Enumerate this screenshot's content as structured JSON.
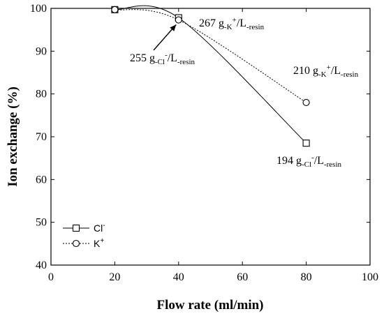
{
  "chart_data": {
    "type": "line",
    "title": "",
    "xlabel": "Flow rate (ml/min)",
    "ylabel": "Ion exchange (%)",
    "xlim": [
      0,
      100
    ],
    "ylim": [
      40,
      100
    ],
    "xticks": [
      0,
      20,
      40,
      60,
      80,
      100
    ],
    "yticks": [
      40,
      50,
      60,
      70,
      80,
      90,
      100
    ],
    "grid": false,
    "legend_position": "bottom-left",
    "series": [
      {
        "name": "Cl-",
        "legend_label": "Cl",
        "legend_sup": "-",
        "marker": "square",
        "line_style": "solid",
        "x": [
          20,
          40,
          80
        ],
        "y": [
          99.7,
          97.8,
          68.5
        ]
      },
      {
        "name": "K+",
        "legend_label": "K",
        "legend_sup": "+",
        "marker": "circle",
        "line_style": "dotted",
        "x": [
          20,
          40,
          80
        ],
        "y": [
          99.7,
          97.3,
          78.0
        ]
      }
    ],
    "annotations": [
      {
        "id": "k40",
        "base": "267 g",
        "sub1": "-K",
        "sup": "+",
        "rest": "/L",
        "sub2": "-resin"
      },
      {
        "id": "cl40",
        "base": "255 g",
        "sub1": "-Cl",
        "sup": "-",
        "rest": "/L",
        "sub2": "-resin"
      },
      {
        "id": "k80",
        "base": "210 g",
        "sub1": "-K",
        "sup": "+",
        "rest": "/L",
        "sub2": "-resin"
      },
      {
        "id": "cl80",
        "base": "194 g",
        "sub1": "-Cl",
        "sup": "-",
        "rest": "/L",
        "sub2": "-resin"
      }
    ]
  }
}
